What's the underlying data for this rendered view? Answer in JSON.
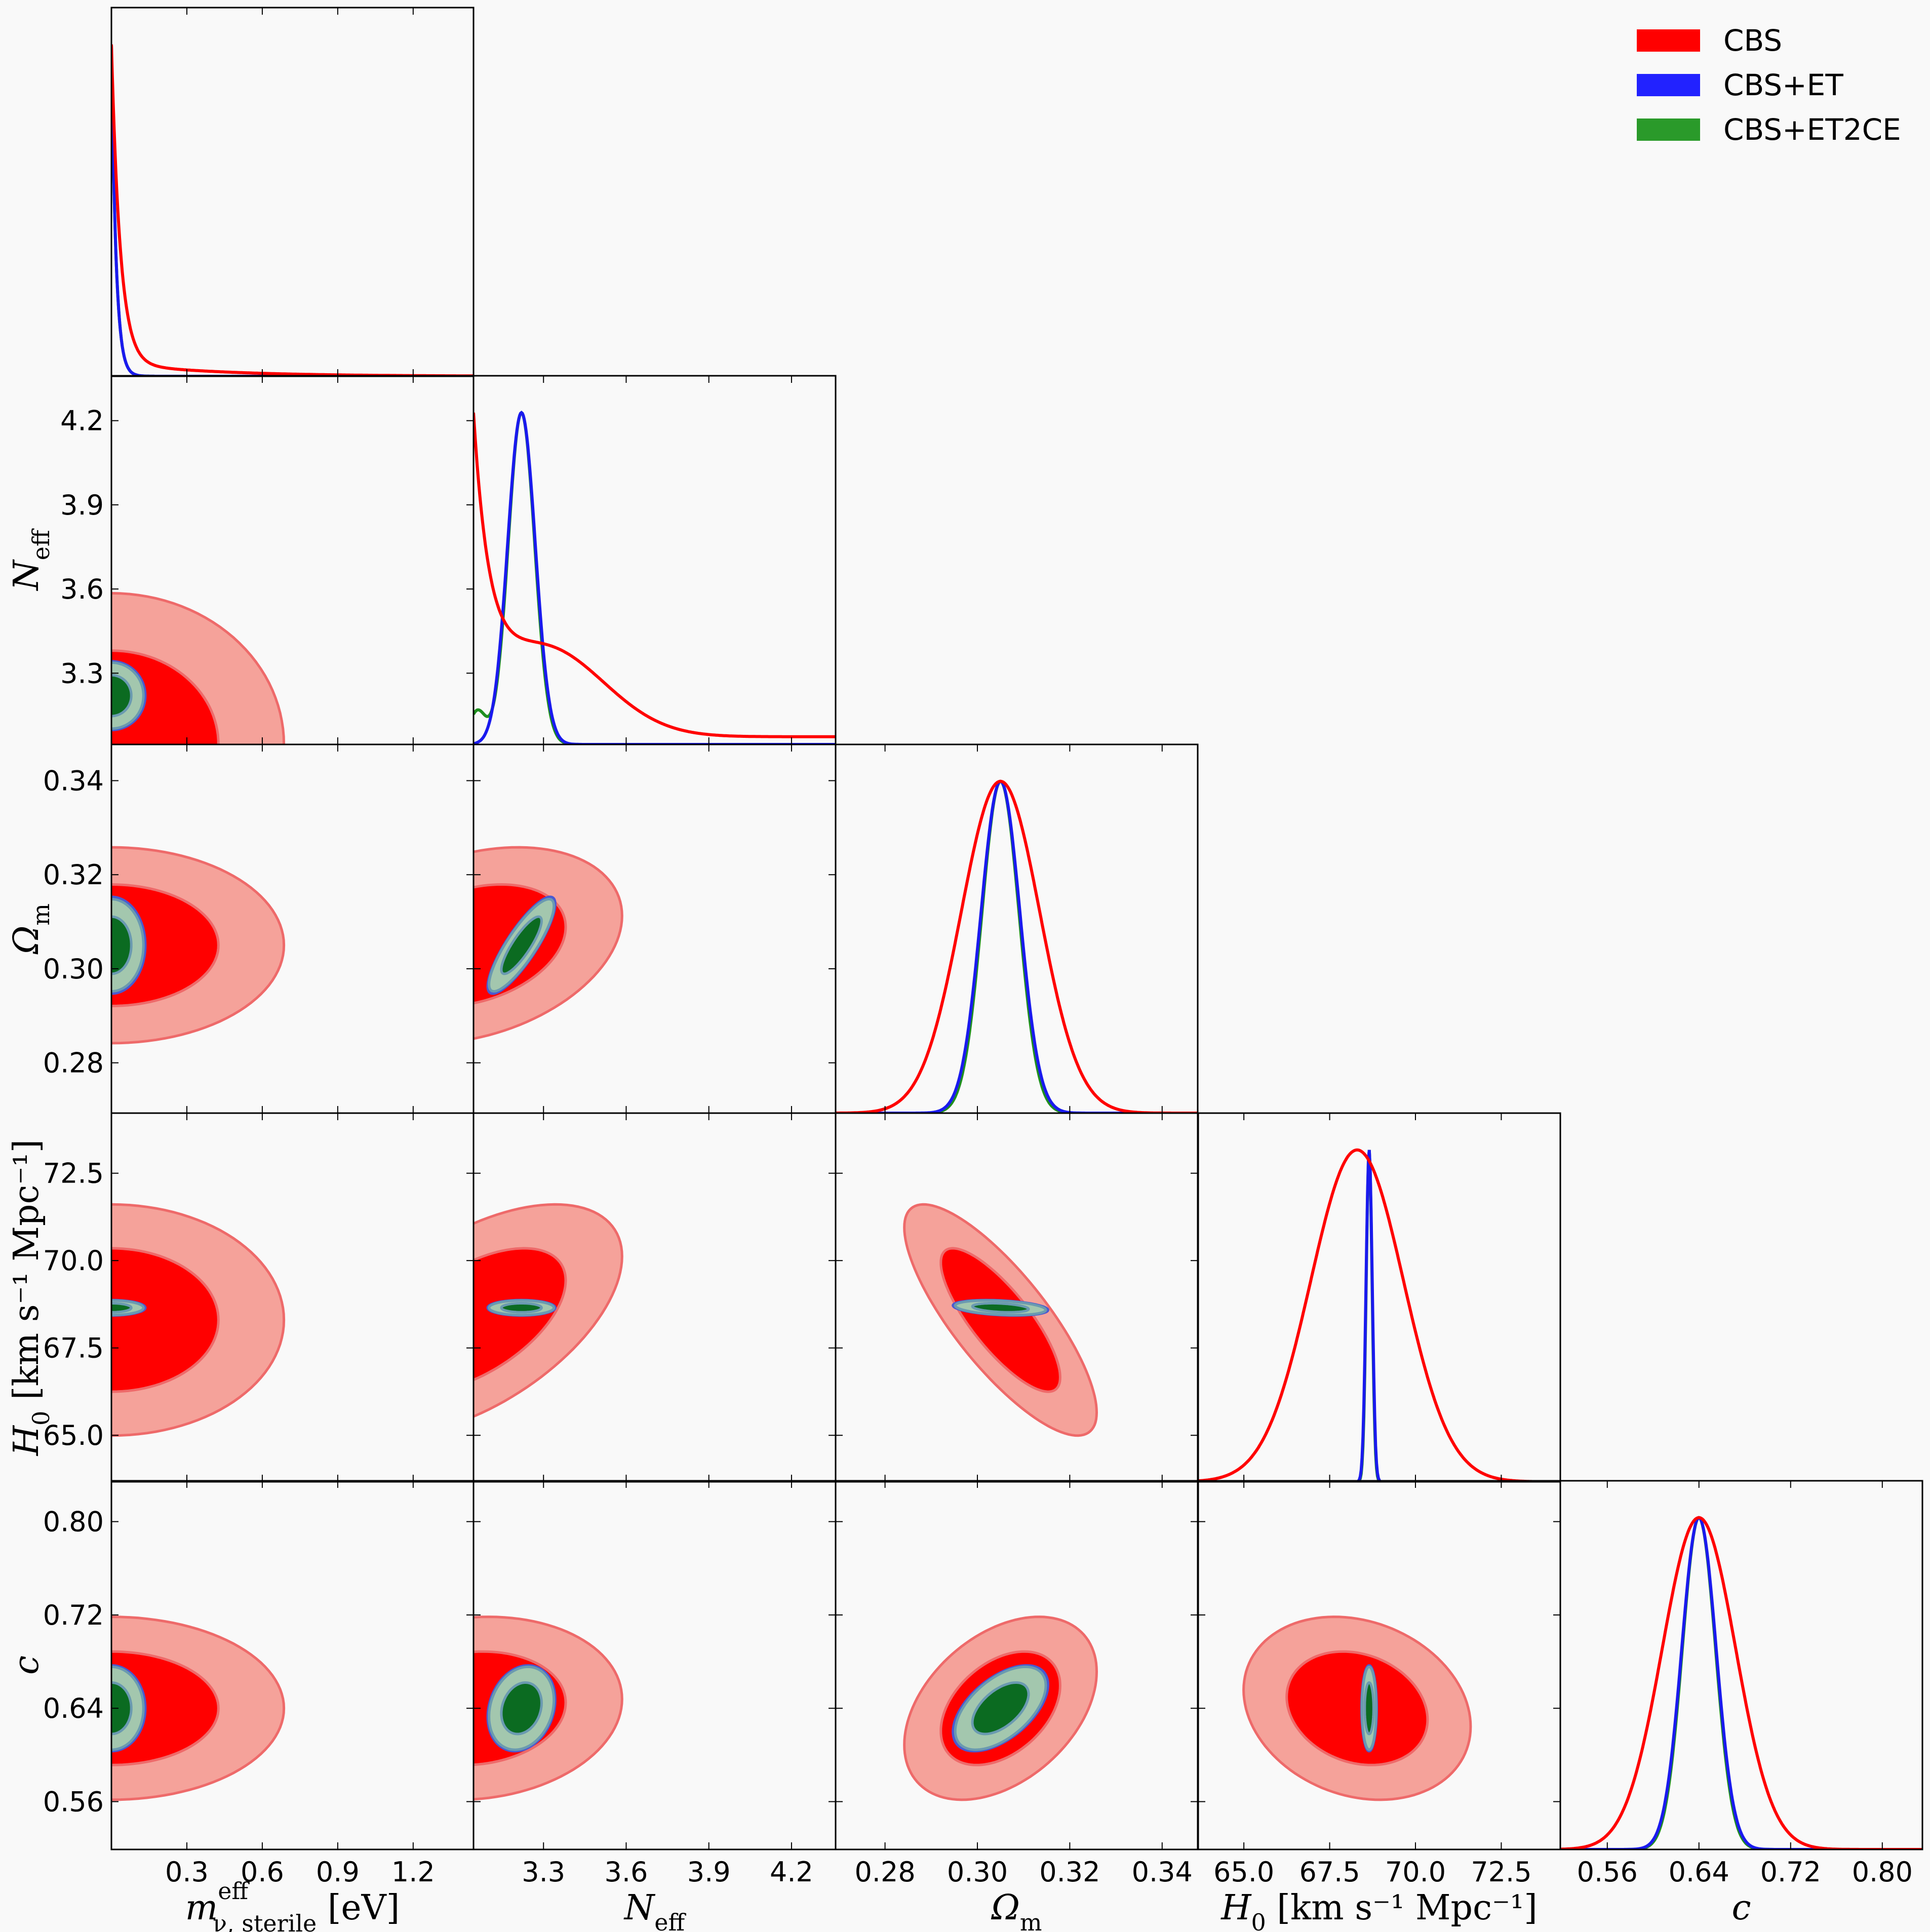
{
  "chart_data": {
    "type": "corner",
    "legend": {
      "placement": "top-right",
      "entries": [
        {
          "label": "CBS",
          "color": "#ff0000"
        },
        {
          "label": "CBS+ET",
          "color": "#2222ff"
        },
        {
          "label": "CBS+ET2CE",
          "color": "#2a9a2a"
        }
      ]
    },
    "parameters": [
      {
        "key": "m",
        "label": {
          "main": "m",
          "sup": "eff",
          "sub": "ν, sterile",
          "unit": " [eV]"
        },
        "range": [
          0,
          1.44
        ],
        "ticks": [
          "0.3",
          "0.6",
          "0.9",
          "1.2"
        ]
      },
      {
        "key": "N",
        "label": {
          "main": "N",
          "sup": "",
          "sub": "eff",
          "unit": ""
        },
        "range": [
          3.046,
          4.36
        ],
        "ticks": [
          "3.3",
          "3.6",
          "3.9",
          "4.2"
        ]
      },
      {
        "key": "Om",
        "label": {
          "main": "Ω",
          "sup": "",
          "sub": "m",
          "unit": ""
        },
        "range": [
          0.2693,
          0.3477
        ],
        "ticks": [
          "0.28",
          "0.30",
          "0.32",
          "0.34"
        ]
      },
      {
        "key": "H0",
        "label": {
          "main": "H",
          "sup": "",
          "sub": "0",
          "unit": " [km s⁻¹ Mpc⁻¹]"
        },
        "range": [
          63.67,
          74.22
        ],
        "ticks": [
          "65.0",
          "67.5",
          "70.0",
          "72.5"
        ]
      },
      {
        "key": "c",
        "label": {
          "main": "c",
          "sup": "",
          "sub": "",
          "unit": ""
        },
        "range": [
          0.519,
          0.835
        ],
        "ticks": [
          "0.56",
          "0.64",
          "0.72",
          "0.80"
        ]
      }
    ],
    "series": [
      {
        "name": "CBS",
        "line_color": "#ff0000",
        "fill_95": "#f5a29a",
        "fill_68": "#ff0000",
        "edge": "#ee6a6a",
        "mean": [
          0,
          3.046,
          0.305,
          68.3,
          0.64
        ],
        "sigma": [
          0.28,
          0.22,
          0.0085,
          1.35,
          0.032
        ],
        "corr": {
          "1-2": 0.3,
          "1-3": 0.55,
          "1-4": 0.1,
          "2-3": -0.8,
          "2-4": 0.4,
          "3-4": -0.2
        }
      },
      {
        "name": "CBS+ET",
        "line_color": "#1a1aee",
        "fill_95": "#8a8ae8",
        "fill_68": "#2020c0",
        "edge": "#4a5ad0",
        "mean": [
          0,
          3.22,
          0.305,
          68.65,
          0.64
        ],
        "sigma": [
          0.055,
          0.05,
          0.0042,
          0.09,
          0.015
        ],
        "corr": {
          "1-2": 0.85,
          "1-3": 0.0,
          "1-4": 0.2,
          "2-3": -0.3,
          "2-4": 0.55,
          "3-4": 0.0
        }
      },
      {
        "name": "CBS+ET2CE",
        "line_color": "#1f8f1f",
        "fill_95": "#a3c7ae",
        "fill_68": "#0b6b21",
        "edge": "#6a9ab0",
        "mean": [
          0,
          3.22,
          0.305,
          68.65,
          0.64
        ],
        "sigma": [
          0.052,
          0.048,
          0.004,
          0.085,
          0.0145
        ],
        "corr": {
          "1-2": 0.85,
          "1-3": 0.0,
          "1-4": 0.2,
          "2-3": -0.3,
          "2-4": 0.55,
          "3-4": 0.0
        }
      }
    ],
    "contour_levels": [
      "68%",
      "95%"
    ],
    "grid": false
  }
}
